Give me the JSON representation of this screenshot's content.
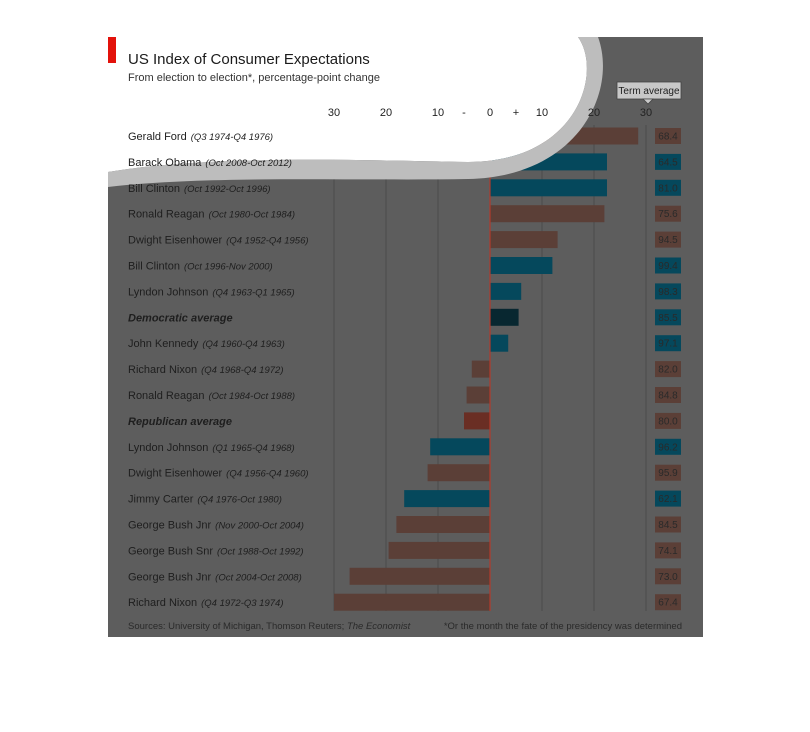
{
  "chart_data": {
    "type": "bar",
    "orientation": "horizontal",
    "title": "US Index of Consumer Expectations",
    "subtitle": "From election to election*, percentage-point change",
    "ticks": [
      "30",
      "20",
      "10",
      "-",
      "0",
      "+",
      "10",
      "20",
      "30"
    ],
    "xlim": [
      -30,
      30
    ],
    "term_average_label": "Term average",
    "rows": [
      {
        "name": "Gerald Ford",
        "period": "(Q3 1974-Q4 1976)",
        "value": 28.5,
        "party": "rep",
        "term_average": "68.4"
      },
      {
        "name": "Barack Obama",
        "period": "(Oct 2008-Oct 2012)",
        "value": 22.5,
        "party": "dem",
        "term_average": "64.5"
      },
      {
        "name": "Bill Clinton",
        "period": "(Oct 1992-Oct 1996)",
        "value": 22.5,
        "party": "dem",
        "term_average": "81.0"
      },
      {
        "name": "Ronald Reagan",
        "period": "(Oct 1980-Oct 1984)",
        "value": 22,
        "party": "rep",
        "term_average": "75.6"
      },
      {
        "name": "Dwight Eisenhower",
        "period": "(Q4 1952-Q4 1956)",
        "value": 13,
        "party": "rep",
        "term_average": "94.5"
      },
      {
        "name": "Bill Clinton",
        "period": "(Oct 1996-Nov 2000)",
        "value": 12,
        "party": "dem",
        "term_average": "99.4"
      },
      {
        "name": "Lyndon Johnson",
        "period": "(Q4 1963-Q1 1965)",
        "value": 6,
        "party": "dem",
        "term_average": "98.3"
      },
      {
        "name": "Democratic average",
        "period": "",
        "value": 5.5,
        "party": "dem-avg",
        "term_average": "85.5"
      },
      {
        "name": "John Kennedy",
        "period": "(Q4 1960-Q4 1963)",
        "value": 3.5,
        "party": "dem",
        "term_average": "97.1"
      },
      {
        "name": "Richard Nixon",
        "period": "(Q4 1968-Q4 1972)",
        "value": -3.5,
        "party": "rep",
        "term_average": "82.0"
      },
      {
        "name": "Ronald Reagan",
        "period": "(Oct 1984-Oct 1988)",
        "value": -4.5,
        "party": "rep",
        "term_average": "84.8"
      },
      {
        "name": "Republican average",
        "period": "",
        "value": -5,
        "party": "rep-avg",
        "term_average": "80.0"
      },
      {
        "name": "Lyndon Johnson",
        "period": "(Q1 1965-Q4 1968)",
        "value": -11.5,
        "party": "dem",
        "term_average": "96.2"
      },
      {
        "name": "Dwight Eisenhower",
        "period": "(Q4 1956-Q4 1960)",
        "value": -12,
        "party": "rep",
        "term_average": "95.9"
      },
      {
        "name": "Jimmy Carter",
        "period": "(Q4 1976-Oct 1980)",
        "value": -16.5,
        "party": "dem",
        "term_average": "62.1"
      },
      {
        "name": "George Bush Jnr",
        "period": "(Nov 2000-Oct 2004)",
        "value": -18,
        "party": "rep",
        "term_average": "84.5"
      },
      {
        "name": "George Bush Snr",
        "period": "(Oct 1988-Oct 1992)",
        "value": -19.5,
        "party": "rep",
        "term_average": "74.1"
      },
      {
        "name": "George Bush Jnr",
        "period": "(Oct 2004-Oct 2008)",
        "value": -27,
        "party": "rep",
        "term_average": "73.0"
      },
      {
        "name": "Richard Nixon",
        "period": "(Q4 1972-Q3 1974)",
        "value": -30,
        "party": "rep",
        "term_average": "67.4"
      }
    ],
    "source_prefix": "Sources: University of Michigan, Thomson Reuters; ",
    "source_italic": "The Economist",
    "footnote": "*Or the month the fate of the presidency was determined",
    "colors": {
      "panel": "#5d5d5d",
      "rep": "#5b3f37",
      "dem": "#05485c",
      "rep_avg": "#6a2e24",
      "dem_avg": "#082730",
      "zero_line": "#b23a2c",
      "accent": "#e3120b"
    }
  }
}
